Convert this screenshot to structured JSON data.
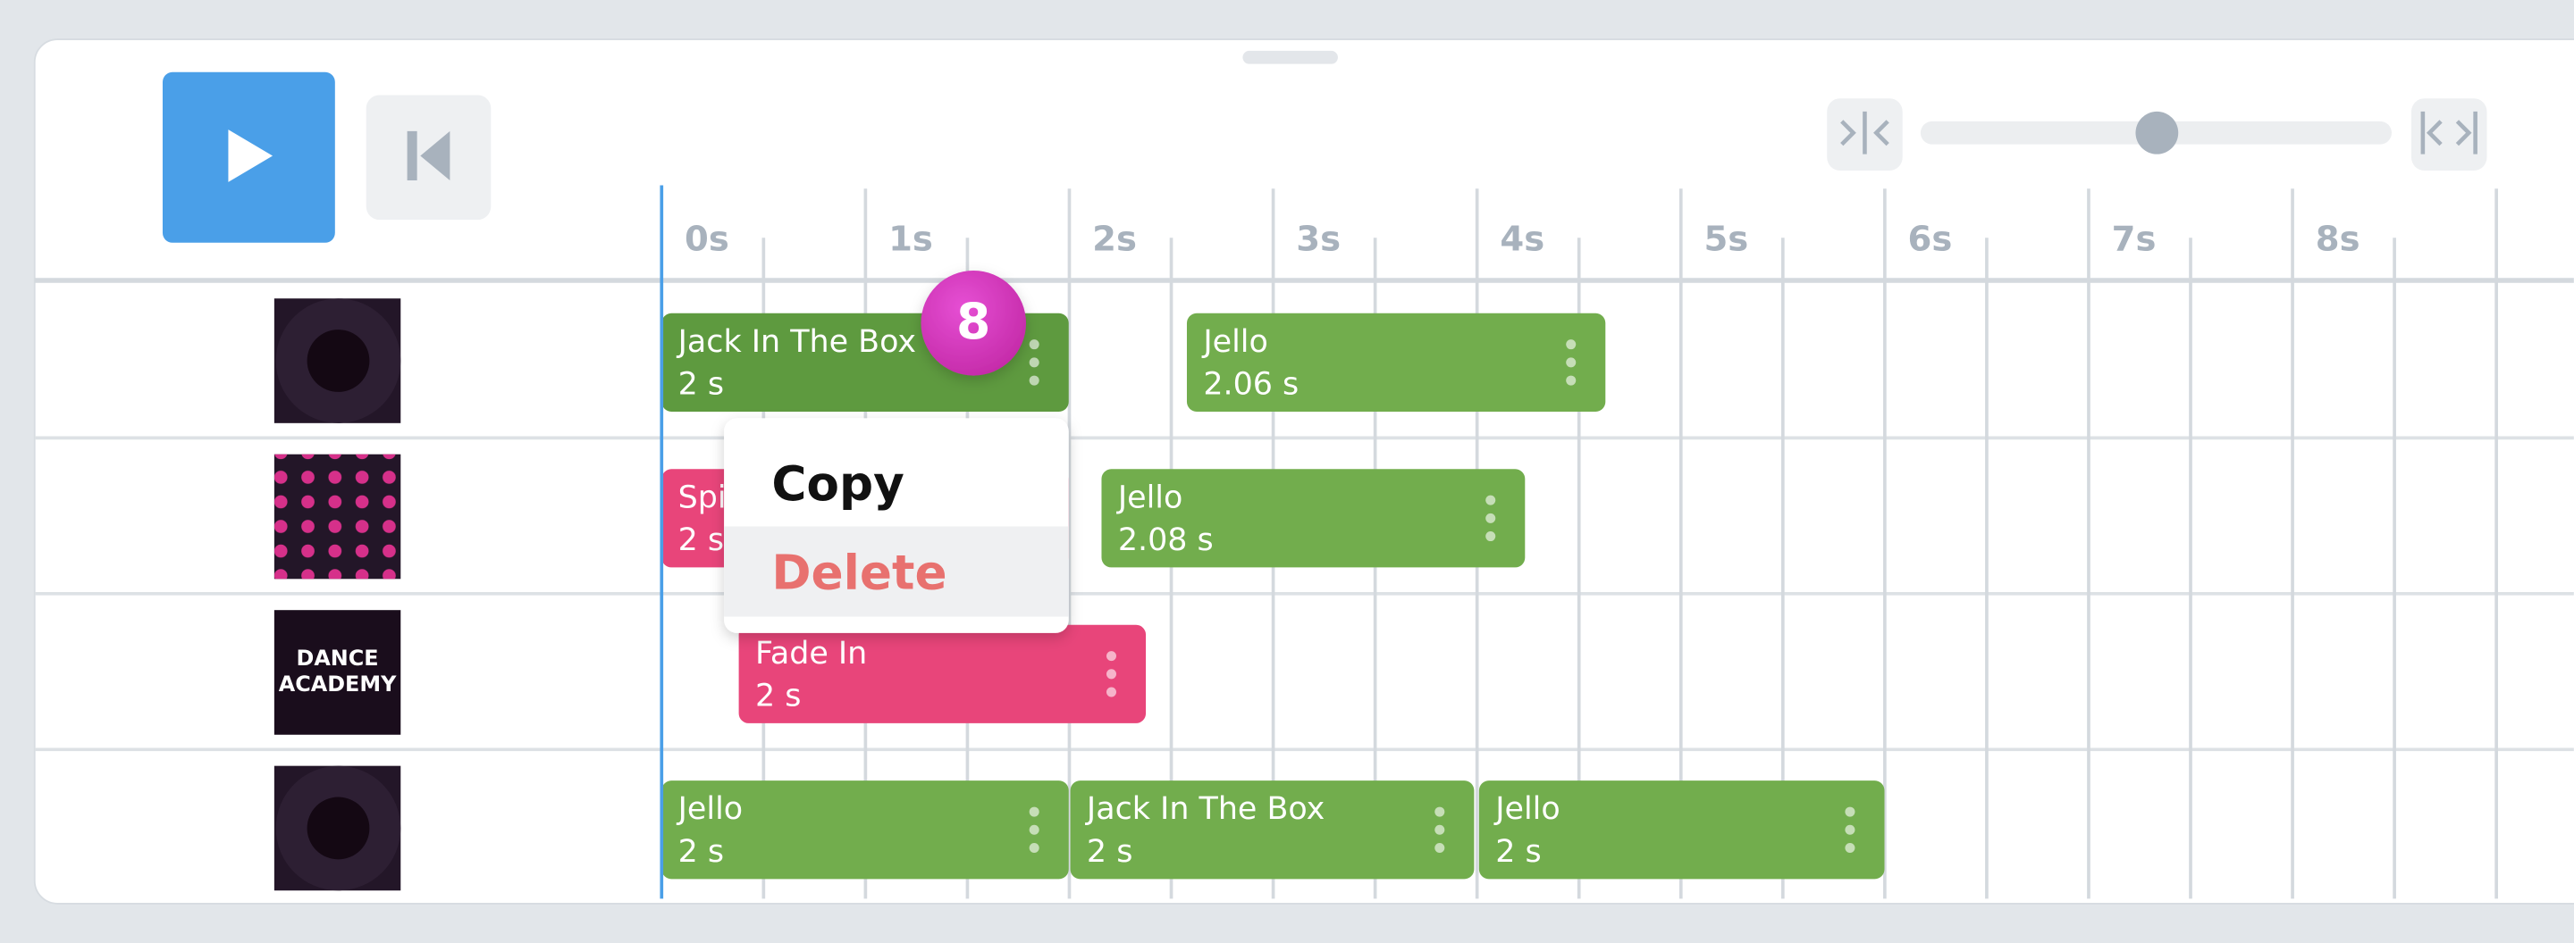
{
  "timeline": {
    "ticks": [
      "0s",
      "1s",
      "2s",
      "3s",
      "4s",
      "5s",
      "6s",
      "7s",
      "8s"
    ]
  },
  "tracks": [
    {
      "clips": [
        {
          "name": "Jack In The Box",
          "duration": "2 s"
        },
        {
          "name": "Jello",
          "duration": "2.06 s"
        }
      ]
    },
    {
      "clips": [
        {
          "name": "Spi",
          "duration": "2 s"
        },
        {
          "name": "Jello",
          "duration": "2.08 s"
        }
      ]
    },
    {
      "thumbnail_text": [
        "DANCE",
        "ACADEMY"
      ],
      "clips": [
        {
          "name": "Fade In",
          "duration": "2 s"
        }
      ]
    },
    {
      "clips": [
        {
          "name": "Jello",
          "duration": "2 s"
        },
        {
          "name": "Jack In The Box",
          "duration": "2 s"
        },
        {
          "name": "Jello",
          "duration": "2 s"
        }
      ]
    }
  ],
  "badge": "8",
  "menu": {
    "items": [
      "Copy",
      "Delete"
    ]
  }
}
